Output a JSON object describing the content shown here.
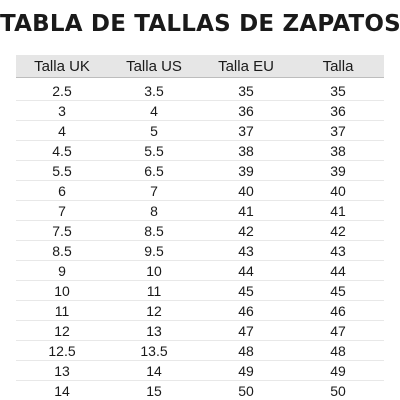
{
  "title": "TABLA DE TALLAS DE ZAPATOS",
  "columns": [
    "Talla UK",
    "Talla US",
    "Talla EU",
    "Talla"
  ],
  "rows": [
    [
      "2.5",
      "3.5",
      "35",
      "35"
    ],
    [
      "3",
      "4",
      "36",
      "36"
    ],
    [
      "4",
      "5",
      "37",
      "37"
    ],
    [
      "4.5",
      "5.5",
      "38",
      "38"
    ],
    [
      "5.5",
      "6.5",
      "39",
      "39"
    ],
    [
      "6",
      "7",
      "40",
      "40"
    ],
    [
      "7",
      "8",
      "41",
      "41"
    ],
    [
      "7.5",
      "8.5",
      "42",
      "42"
    ],
    [
      "8.5",
      "9.5",
      "43",
      "43"
    ],
    [
      "9",
      "10",
      "44",
      "44"
    ],
    [
      "10",
      "11",
      "45",
      "45"
    ],
    [
      "11",
      "12",
      "46",
      "46"
    ],
    [
      "12",
      "13",
      "47",
      "47"
    ],
    [
      "12.5",
      "13.5",
      "48",
      "48"
    ],
    [
      "13",
      "14",
      "49",
      "49"
    ],
    [
      "14",
      "15",
      "50",
      "50"
    ]
  ]
}
